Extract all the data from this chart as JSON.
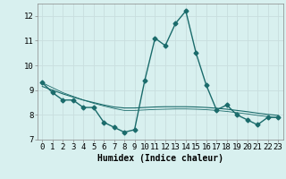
{
  "xlabel": "Humidex (Indice chaleur)",
  "background_color": "#d8f0ef",
  "grid_color": "#c8dede",
  "line_color": "#1a6b6b",
  "x_data": [
    0,
    1,
    2,
    3,
    4,
    5,
    6,
    7,
    8,
    9,
    10,
    11,
    12,
    13,
    14,
    15,
    16,
    17,
    18,
    19,
    20,
    21,
    22,
    23
  ],
  "y_data_main": [
    9.3,
    8.9,
    8.6,
    8.6,
    8.3,
    8.3,
    7.7,
    7.5,
    7.3,
    7.4,
    9.4,
    11.1,
    10.8,
    11.7,
    12.2,
    10.5,
    9.2,
    8.2,
    8.4,
    8.0,
    7.8,
    7.6,
    7.9,
    7.9
  ],
  "y_data_trend1": [
    9.15,
    9.0,
    8.85,
    8.72,
    8.6,
    8.5,
    8.4,
    8.32,
    8.28,
    8.28,
    8.3,
    8.32,
    8.33,
    8.33,
    8.33,
    8.32,
    8.3,
    8.27,
    8.23,
    8.18,
    8.13,
    8.07,
    8.02,
    7.98
  ],
  "y_data_trend2": [
    9.3,
    9.1,
    8.9,
    8.75,
    8.6,
    8.47,
    8.36,
    8.26,
    8.18,
    8.18,
    8.2,
    8.22,
    8.23,
    8.24,
    8.24,
    8.23,
    8.21,
    8.18,
    8.14,
    8.09,
    8.04,
    7.98,
    7.93,
    7.88
  ],
  "ylim": [
    7.0,
    12.5
  ],
  "yticks": [
    7,
    8,
    9,
    10,
    11,
    12
  ],
  "xticks": [
    0,
    1,
    2,
    3,
    4,
    5,
    6,
    7,
    8,
    9,
    10,
    11,
    12,
    13,
    14,
    15,
    16,
    17,
    18,
    19,
    20,
    21,
    22,
    23
  ],
  "marker": "D",
  "markersize": 2.5,
  "linewidth": 1.0,
  "xlabel_fontsize": 7,
  "tick_fontsize": 6.5
}
